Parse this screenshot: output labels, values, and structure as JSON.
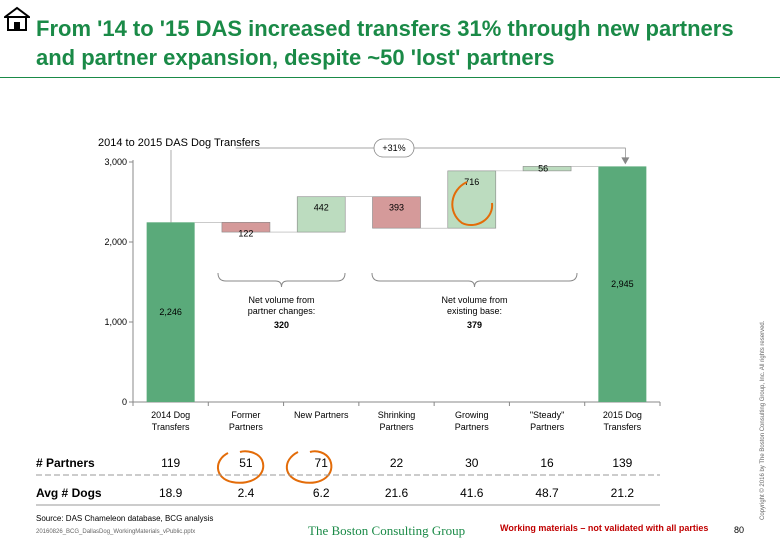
{
  "title": "From '14 to '15 DAS increased transfers 31% through new partners and partner expansion, despite ~50 'lost' partners",
  "chart_data": {
    "type": "waterfall",
    "title": "2014 to 2015 DAS Dog Transfers",
    "categories": [
      "2014 Dog\nTransfers",
      "Former\nPartners",
      "New Partners",
      "Shrinking\nPartners",
      "Growing\nPartners",
      "\"Steady\"\nPartners",
      "2015 Dog\nTransfers"
    ],
    "steps": [
      {
        "kind": "total",
        "value": 2246,
        "label": "2,246"
      },
      {
        "kind": "decrease",
        "value": 122,
        "label": "122"
      },
      {
        "kind": "increase",
        "value": 442,
        "label": "442"
      },
      {
        "kind": "decrease",
        "value": 393,
        "label": "393"
      },
      {
        "kind": "increase",
        "value": 716,
        "label": "716"
      },
      {
        "kind": "increase",
        "value": 56,
        "label": "56"
      },
      {
        "kind": "total",
        "value": 2945,
        "label": "2,945"
      }
    ],
    "ylim": [
      0,
      3000
    ],
    "yticks": [
      0,
      1000,
      2000,
      3000
    ],
    "ytick_labels": [
      "0",
      "1,000",
      "2,000",
      "3,000"
    ],
    "growth_label": "+31%",
    "colors": {
      "total": "#5aaa7a",
      "decrease": "#d59a9a",
      "increase": "#bcdcbf",
      "outline": "#888888"
    },
    "annotations": [
      {
        "lines": [
          "Net volume from",
          "partner changes:"
        ],
        "value": "320"
      },
      {
        "lines": [
          "Net volume from",
          "existing base:"
        ],
        "value": "379"
      }
    ]
  },
  "table": {
    "rows": [
      {
        "label": "# Partners",
        "values": [
          "119",
          "51",
          "71",
          "22",
          "30",
          "16",
          "139"
        ]
      },
      {
        "label": "Avg # Dogs",
        "values": [
          "18.9",
          "2.4",
          "6.2",
          "21.6",
          "41.6",
          "48.7",
          "21.2"
        ]
      }
    ]
  },
  "footer": {
    "source": "Source: DAS Chameleon database, BCG analysis",
    "filename": "20160826_BCG_DallasDog_WorkingMaterials_vPublic.pptx",
    "logo": "The Boston Consulting Group",
    "working_note": "Working materials – not validated with all parties",
    "page": "80",
    "copyright": "Copyright © 2016 by The Boston Consulting Group, Inc. All rights reserved."
  }
}
